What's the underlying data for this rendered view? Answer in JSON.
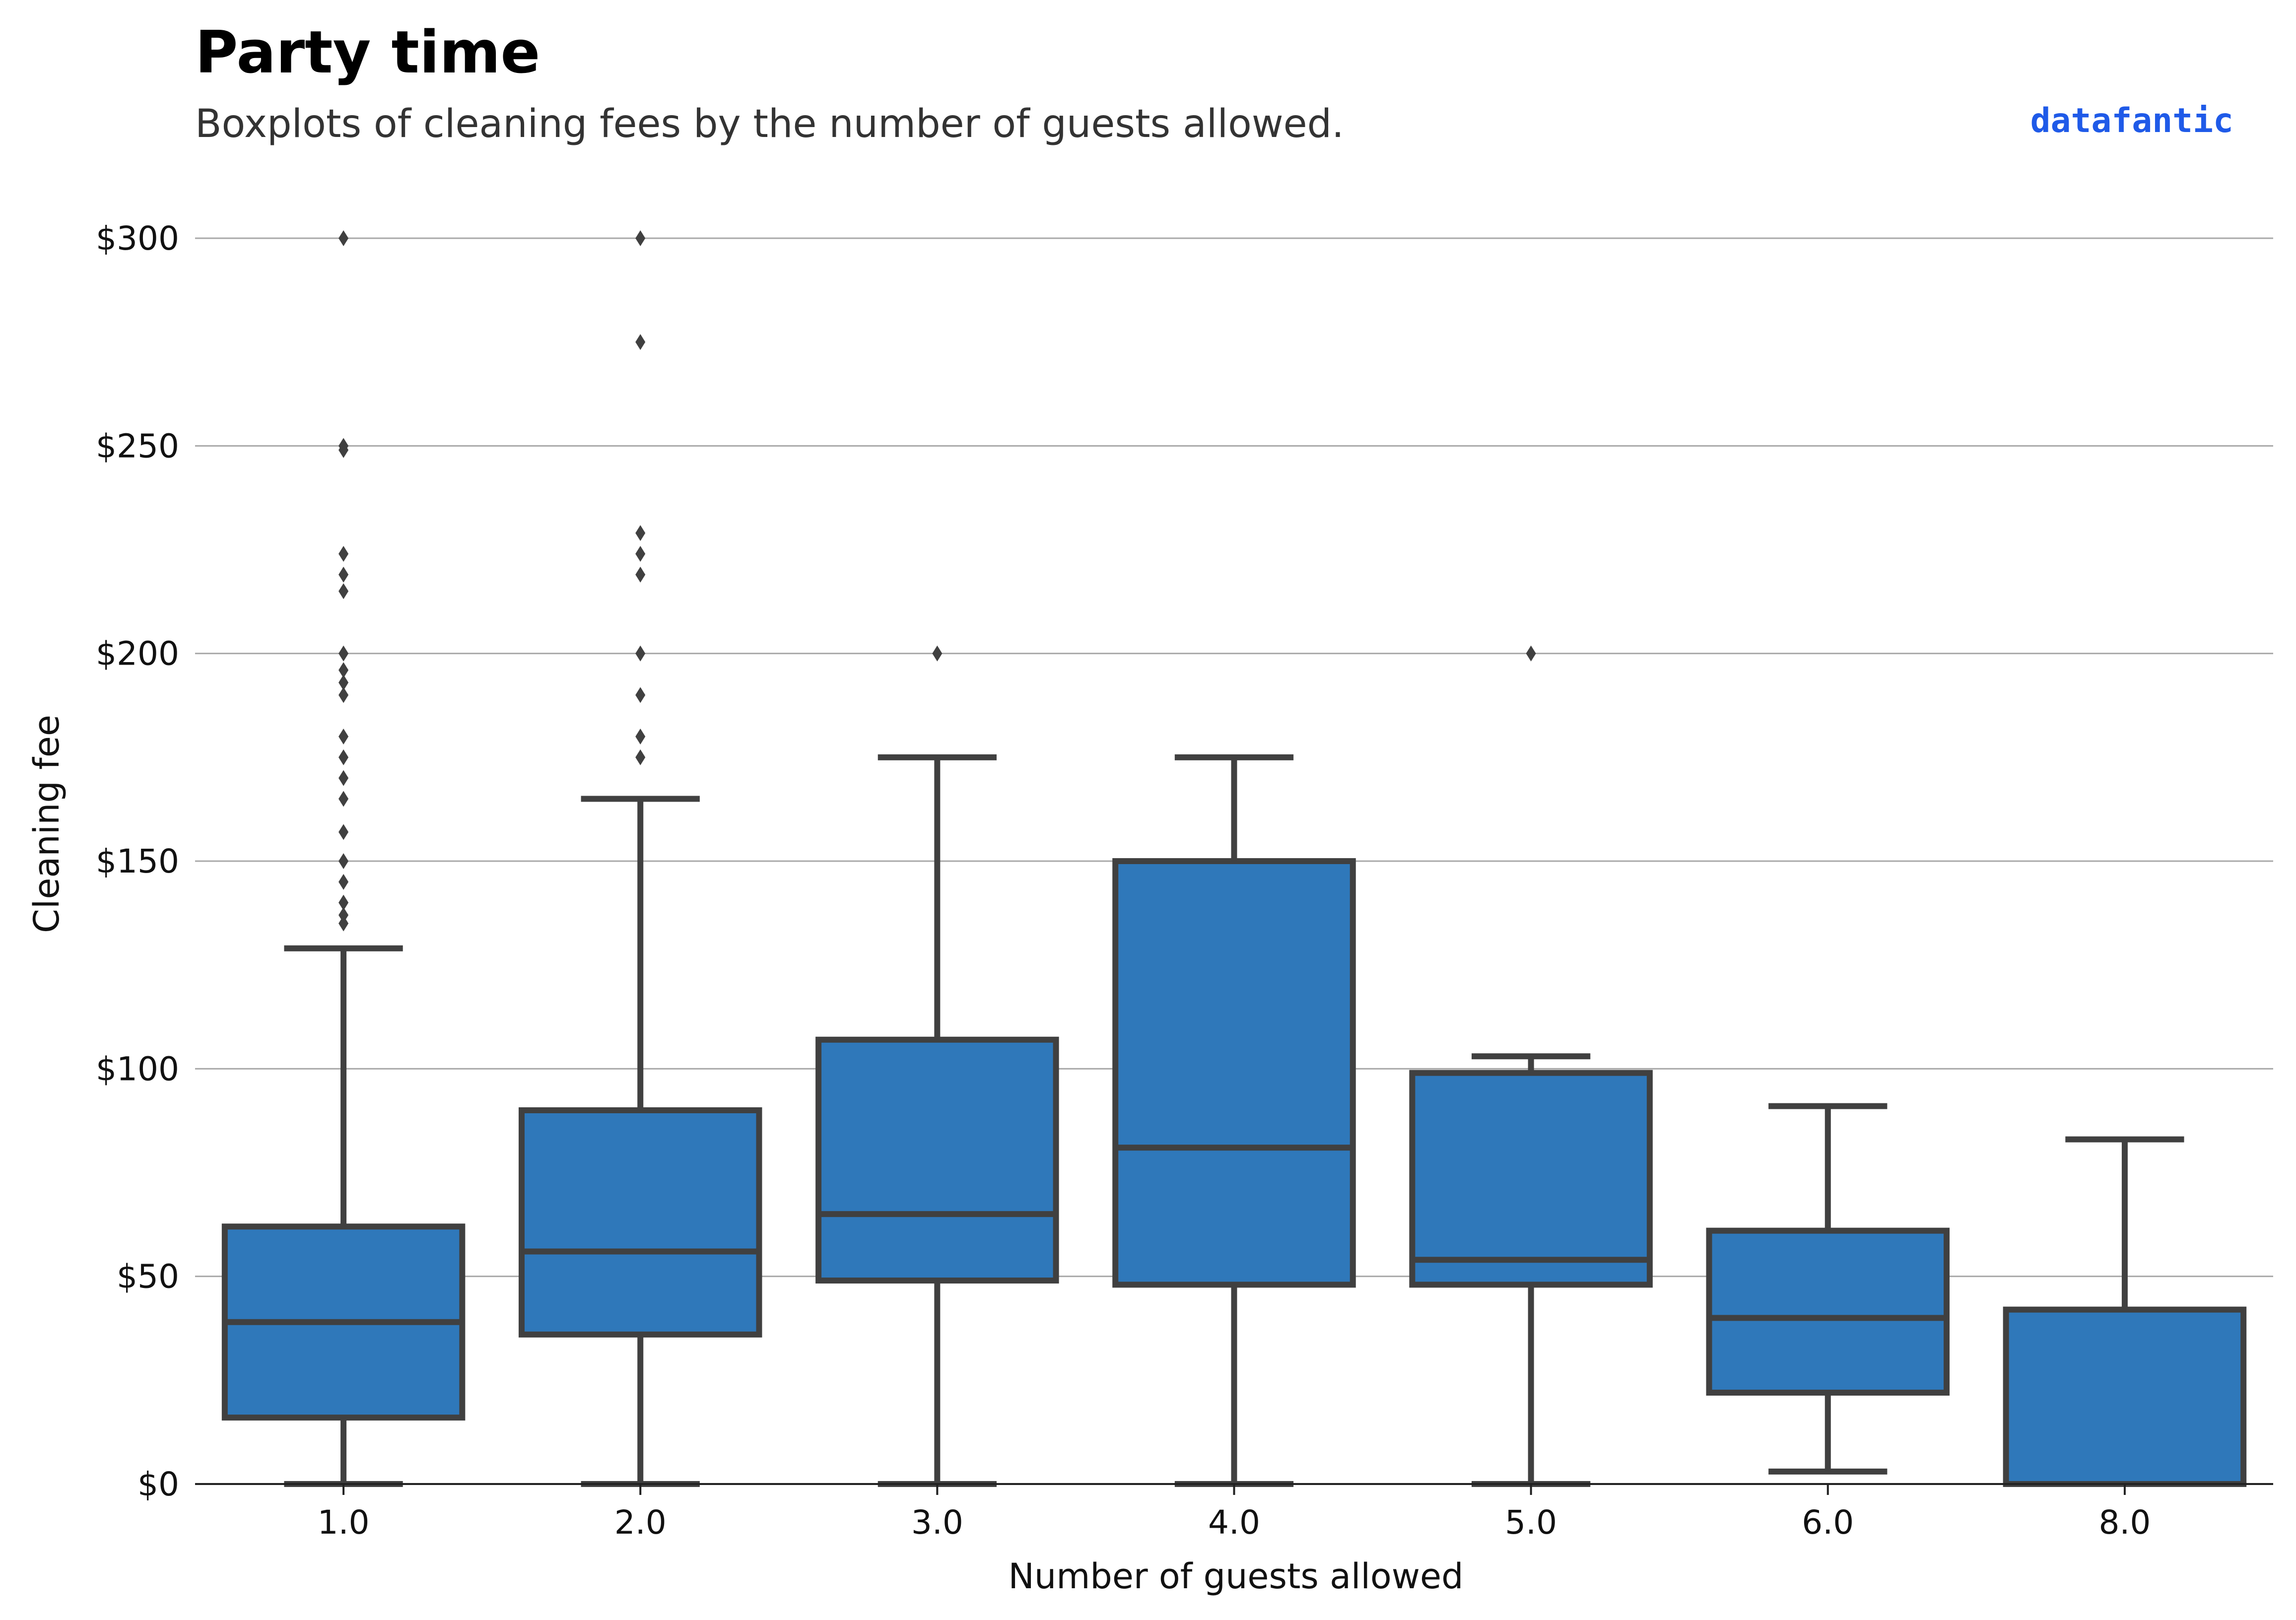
{
  "chart_data": {
    "type": "boxplot",
    "title": "Party time",
    "subtitle": "Boxplots of cleaning fees by the number of guests allowed.",
    "brand": "datafantic",
    "xlabel": "Number of guests allowed",
    "ylabel": "Cleaning fee",
    "ylim": [
      0,
      300
    ],
    "yticks": [
      {
        "value": 0,
        "label": "$0"
      },
      {
        "value": 50,
        "label": "$50"
      },
      {
        "value": 100,
        "label": "$100"
      },
      {
        "value": 150,
        "label": "$150"
      },
      {
        "value": 200,
        "label": "$200"
      },
      {
        "value": 250,
        "label": "$250"
      },
      {
        "value": 300,
        "label": "$300"
      }
    ],
    "grid": "horizontal",
    "colors": {
      "box_fill": "#2f78ba",
      "box_edge": "#404040",
      "grid": "#a9a9a9"
    },
    "categories": [
      "1.0",
      "2.0",
      "3.0",
      "4.0",
      "5.0",
      "6.0",
      "8.0"
    ],
    "boxes": [
      {
        "category": "1.0",
        "whisker_low": 0,
        "q1": 16,
        "median": 39,
        "q3": 62,
        "whisker_high": 129,
        "outliers": [
          135,
          137,
          140,
          145,
          150,
          157,
          165,
          170,
          175,
          180,
          190,
          193,
          196,
          200,
          215,
          219,
          224,
          249,
          250,
          300
        ]
      },
      {
        "category": "2.0",
        "whisker_low": 0,
        "q1": 36,
        "median": 56,
        "q3": 90,
        "whisker_high": 165,
        "outliers": [
          175,
          180,
          190,
          200,
          219,
          224,
          229,
          275,
          300
        ]
      },
      {
        "category": "3.0",
        "whisker_low": 0,
        "q1": 49,
        "median": 65,
        "q3": 107,
        "whisker_high": 175,
        "outliers": [
          200
        ]
      },
      {
        "category": "4.0",
        "whisker_low": 0,
        "q1": 48,
        "median": 81,
        "q3": 150,
        "whisker_high": 175,
        "outliers": []
      },
      {
        "category": "5.0",
        "whisker_low": 0,
        "q1": 48,
        "median": 54,
        "q3": 99,
        "whisker_high": 103,
        "outliers": [
          200
        ]
      },
      {
        "category": "6.0",
        "whisker_low": 3,
        "q1": 22,
        "median": 40,
        "q3": 61,
        "whisker_high": 91,
        "outliers": []
      },
      {
        "category": "8.0",
        "whisker_low": 0,
        "q1": 0,
        "median": 0,
        "q3": 42,
        "whisker_high": 83,
        "outliers": []
      }
    ]
  }
}
